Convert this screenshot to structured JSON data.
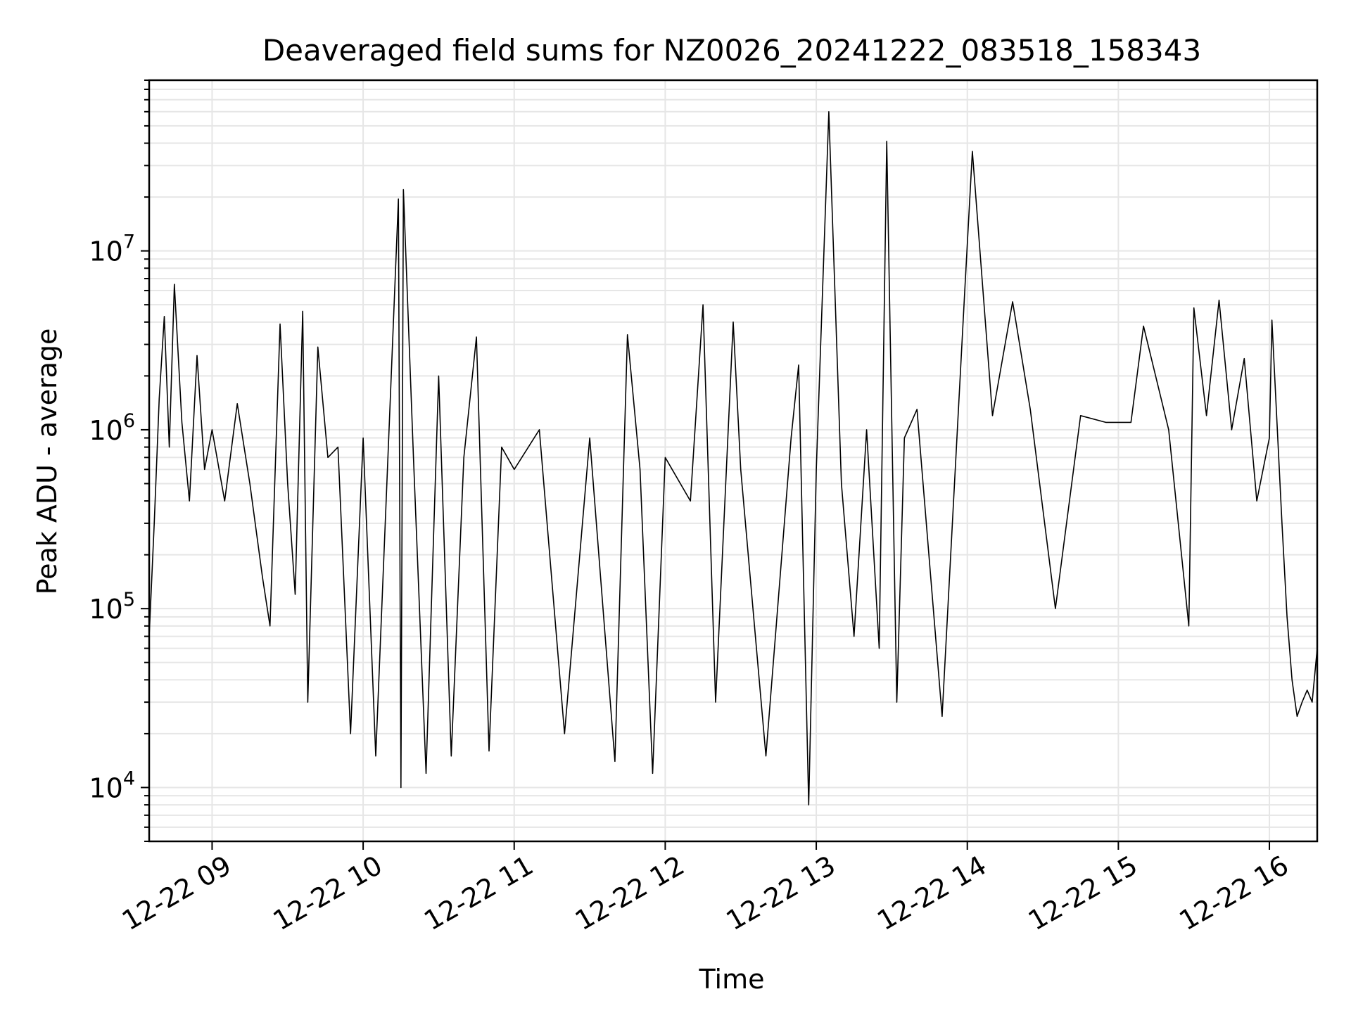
{
  "chart_data": {
    "type": "line",
    "title": "Deaveraged field sums for NZ0026_20241222_083518_158343",
    "xlabel": "Time",
    "ylabel": "Peak ADU - average",
    "yscale": "log",
    "ylim": [
      5000,
      90000000
    ],
    "xlim": [
      "12-22 08:35",
      "12-22 16:19"
    ],
    "grid": true,
    "line_color": "#000000",
    "x_ticks": [
      {
        "value": "12-22 09",
        "label": "12-22 09"
      },
      {
        "value": "12-22 10",
        "label": "12-22 10"
      },
      {
        "value": "12-22 11",
        "label": "12-22 11"
      },
      {
        "value": "12-22 12",
        "label": "12-22 12"
      },
      {
        "value": "12-22 13",
        "label": "12-22 13"
      },
      {
        "value": "12-22 14",
        "label": "12-22 14"
      },
      {
        "value": "12-22 15",
        "label": "12-22 15"
      },
      {
        "value": "12-22 16",
        "label": "12-22 16"
      }
    ],
    "y_ticks": [
      {
        "value": 10000,
        "base": "10",
        "exp": "4"
      },
      {
        "value": 100000,
        "base": "10",
        "exp": "5"
      },
      {
        "value": 1000000,
        "base": "10",
        "exp": "6"
      },
      {
        "value": 10000000,
        "base": "10",
        "exp": "7"
      }
    ],
    "series": [
      {
        "x": [
          "12-22 08:35",
          "12-22 08:37",
          "12-22 08:39",
          "12-22 08:41",
          "12-22 08:43",
          "12-22 08:45",
          "12-22 08:48",
          "12-22 08:51",
          "12-22 08:54",
          "12-22 08:57",
          "12-22 09:00",
          "12-22 09:05",
          "12-22 09:10",
          "12-22 09:15",
          "12-22 09:20",
          "12-22 09:23",
          "12-22 09:27",
          "12-22 09:30",
          "12-22 09:33",
          "12-22 09:36",
          "12-22 09:38",
          "12-22 09:42",
          "12-22 09:46",
          "12-22 09:50",
          "12-22 09:55",
          "12-22 10:00",
          "12-22 10:05",
          "12-22 10:10",
          "12-22 10:14",
          "12-22 10:15",
          "12-22 10:16",
          "12-22 10:20",
          "12-22 10:25",
          "12-22 10:30",
          "12-22 10:35",
          "12-22 10:40",
          "12-22 10:45",
          "12-22 10:50",
          "12-22 10:55",
          "12-22 11:00",
          "12-22 11:10",
          "12-22 11:20",
          "12-22 11:30",
          "12-22 11:40",
          "12-22 11:45",
          "12-22 11:50",
          "12-22 11:55",
          "12-22 12:00",
          "12-22 12:10",
          "12-22 12:15",
          "12-22 12:20",
          "12-22 12:27",
          "12-22 12:30",
          "12-22 12:40",
          "12-22 12:50",
          "12-22 12:53",
          "12-22 12:57",
          "12-22 13:00",
          "12-22 13:05",
          "12-22 13:10",
          "12-22 13:15",
          "12-22 13:20",
          "12-22 13:25",
          "12-22 13:28",
          "12-22 13:32",
          "12-22 13:35",
          "12-22 13:40",
          "12-22 13:50",
          "12-22 13:59",
          "12-22 14:02",
          "12-22 14:10",
          "12-22 14:18",
          "12-22 14:25",
          "12-22 14:35",
          "12-22 14:45",
          "12-22 14:55",
          "12-22 15:05",
          "12-22 15:10",
          "12-22 15:20",
          "12-22 15:28",
          "12-22 15:30",
          "12-22 15:35",
          "12-22 15:40",
          "12-22 15:45",
          "12-22 15:50",
          "12-22 15:55",
          "12-22 16:00",
          "12-22 16:01",
          "12-22 16:03",
          "12-22 16:05",
          "12-22 16:07",
          "12-22 16:09",
          "12-22 16:11",
          "12-22 16:13",
          "12-22 16:15",
          "12-22 16:17",
          "12-22 16:19"
        ],
        "y": [
          70000,
          300000,
          1500000,
          4300000,
          800000,
          6500000,
          1100000,
          400000,
          2600000,
          600000,
          1000000,
          400000,
          1400000,
          500000,
          150000,
          80000,
          3900000,
          500000,
          120000,
          4600000,
          30000,
          2900000,
          700000,
          800000,
          20000,
          900000,
          15000,
          800000,
          19500000,
          10000,
          22000000,
          700000,
          12000,
          2000000,
          15000,
          700000,
          3300000,
          16000,
          800000,
          600000,
          1000000,
          20000,
          900000,
          14000,
          3400000,
          600000,
          12000,
          700000,
          400000,
          5000000,
          30000,
          4000000,
          600000,
          15000,
          900000,
          2300000,
          8000,
          600000,
          60000000,
          500000,
          70000,
          1000000,
          60000,
          41000000,
          30000,
          900000,
          1300000,
          25000,
          6000000,
          36000000,
          1200000,
          5200000,
          1300000,
          100000,
          1200000,
          1100000,
          1100000,
          3800000,
          1000000,
          80000,
          4800000,
          1200000,
          5300000,
          1000000,
          2500000,
          400000,
          900000,
          4100000,
          1100000,
          300000,
          90000,
          40000,
          25000,
          30000,
          35000,
          30000,
          60000
        ]
      }
    ]
  }
}
